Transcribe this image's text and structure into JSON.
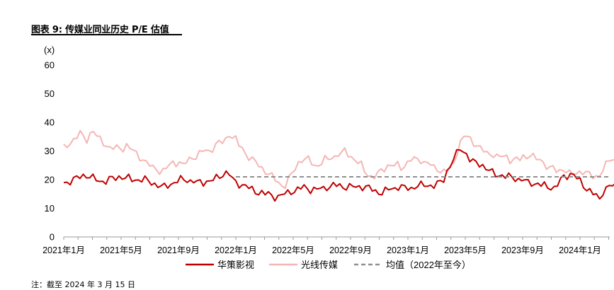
{
  "title": "图表 9: 传媒业同业历史 P/E 估值",
  "footnote": "注：截至 2024 年 3 月 15 日",
  "chart_data": {
    "type": "line",
    "title": "图表 9: 传媒业同业历史 P/E 估值",
    "ylabel": "(x)",
    "ylim": [
      0,
      60
    ],
    "yticks": [
      0,
      10,
      20,
      30,
      40,
      50,
      60
    ],
    "x_tick_labels": [
      "2021年1月",
      "2021年5月",
      "2021年9月",
      "2022年1月",
      "2022年5月",
      "2022年9月",
      "2023年1月",
      "2023年5月",
      "2023年9月",
      "2024年1月"
    ],
    "x_period": {
      "start": "2021-01",
      "end": "2024-03"
    },
    "grid": false,
    "legend_position": "bottom",
    "series": [
      {
        "name": "华策影视",
        "color": "#c00000",
        "style": "solid",
        "values": [
          19,
          19,
          19.5,
          20,
          20.5,
          21,
          21.5,
          21.5,
          21,
          20.5,
          20,
          19.5,
          19.5,
          19.5,
          20,
          20.5,
          20.5,
          21,
          21,
          20.5,
          20.5,
          20,
          20,
          20,
          20,
          20,
          19.5,
          19,
          18.5,
          18,
          17.5,
          17.5,
          18,
          18.5,
          19,
          19.5,
          20,
          20,
          20,
          19.5,
          19.5,
          19,
          19,
          19,
          19.5,
          19.5,
          20,
          20.5,
          21,
          22,
          22.5,
          22,
          20,
          19,
          18.5,
          18,
          18,
          17,
          16.5,
          16,
          15.5,
          15.5,
          15,
          15,
          14.5,
          14,
          14,
          14.5,
          15,
          15.5,
          16,
          16,
          16.5,
          17,
          17.5,
          17,
          16.5,
          16.5,
          16.5,
          17,
          17,
          17.5,
          17.5,
          18,
          18,
          18,
          17.5,
          17.5,
          17.5,
          17.5,
          17.5,
          17.5,
          17.5,
          17.5,
          17,
          16.5,
          16,
          15.5,
          15.5,
          16,
          16.5,
          17,
          17,
          17.5,
          17.5,
          17,
          17,
          17,
          17.5,
          18,
          18,
          18,
          18,
          18,
          18,
          18.5,
          19,
          20,
          23,
          25,
          27,
          29,
          31,
          30,
          29,
          27,
          26,
          26,
          25.5,
          25,
          24,
          23,
          22.5,
          22,
          21.5,
          21.5,
          21,
          21,
          21,
          20.5,
          20,
          20,
          19.5,
          19,
          19,
          18.5,
          18.5,
          18,
          18,
          17.5,
          17.5,
          17,
          18,
          20,
          21,
          21.5,
          22,
          21.5,
          20.5,
          19.5,
          18,
          17,
          16,
          15,
          14.5,
          13,
          16,
          17,
          17.5,
          18,
          18
        ]
      },
      {
        "name": "光线传媒",
        "color": "#f4b6b4",
        "style": "solid",
        "values": [
          31,
          32,
          33,
          34,
          35,
          36,
          35,
          34,
          36,
          37,
          35,
          34,
          33,
          32,
          31,
          31,
          31,
          31,
          31,
          32,
          31,
          30,
          29,
          28,
          27,
          26,
          25,
          24,
          24,
          23,
          23,
          24,
          25,
          26,
          26,
          26,
          25,
          26,
          27,
          28,
          28,
          29,
          30,
          30,
          30,
          31,
          32,
          33,
          33,
          34,
          36,
          35,
          34,
          32,
          31,
          29,
          28,
          27,
          26,
          25,
          24,
          23,
          22,
          21,
          20,
          19,
          18,
          18,
          20,
          22,
          24,
          26,
          27,
          27,
          27,
          26,
          25,
          25,
          26,
          27,
          27,
          28,
          28,
          29,
          29,
          30,
          29,
          28,
          27,
          26,
          25,
          23,
          22,
          21,
          21,
          22,
          23,
          24,
          25,
          25,
          25,
          25,
          24,
          25,
          26,
          27,
          27,
          27,
          27,
          26,
          26,
          25,
          24,
          24,
          23,
          23,
          23,
          24,
          26,
          30,
          33,
          35,
          35,
          34,
          33,
          32,
          31,
          30,
          29,
          29,
          29,
          28,
          28,
          28,
          28,
          27,
          27,
          27,
          27,
          28,
          28,
          29,
          28,
          27,
          27,
          26,
          25,
          24,
          24,
          23,
          23,
          24,
          23,
          22,
          22,
          22,
          23,
          23,
          22,
          22,
          21,
          21,
          22,
          23,
          25,
          27,
          27,
          27
        ]
      },
      {
        "name": "均值（2022年至今）",
        "color": "#909090",
        "style": "dashed",
        "x_start": "2022-01",
        "values": [
          21
        ]
      }
    ]
  }
}
